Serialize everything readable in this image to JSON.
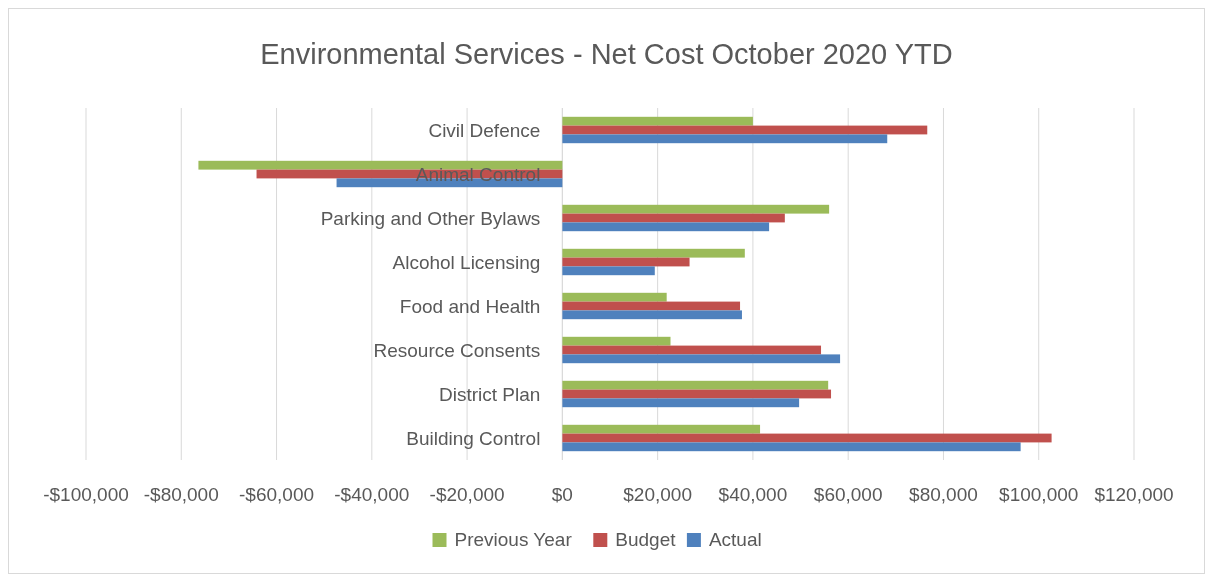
{
  "chart_data": {
    "type": "bar",
    "orientation": "horizontal",
    "title": "Environmental Services - Net Cost October 2020 YTD",
    "categories": [
      "Civil Defence",
      "Animal Control",
      "Parking and Other Bylaws",
      "Alcohol Licensing",
      "Food and Health",
      "Resource Consents",
      "District Plan",
      "Building Control"
    ],
    "series": [
      {
        "name": "Previous Year",
        "color": "#9bbb59",
        "values": [
          40000,
          -76400,
          56000,
          38300,
          21900,
          22700,
          55800,
          41500
        ]
      },
      {
        "name": "Budget",
        "color": "#c0504d",
        "values": [
          76600,
          -64200,
          46700,
          26700,
          37300,
          54300,
          56400,
          102700
        ]
      },
      {
        "name": "Actual",
        "color": "#4f81bd",
        "values": [
          68200,
          -47400,
          43400,
          19400,
          37700,
          58300,
          49700,
          96200
        ]
      }
    ],
    "xlim": [
      -100000,
      120000
    ],
    "xticks": [
      {
        "value": -100000,
        "label": "-$100,000"
      },
      {
        "value": -80000,
        "label": "-$80,000"
      },
      {
        "value": -60000,
        "label": "-$60,000"
      },
      {
        "value": -40000,
        "label": "-$40,000"
      },
      {
        "value": -20000,
        "label": "-$20,000"
      },
      {
        "value": 0,
        "label": "$0"
      },
      {
        "value": 20000,
        "label": "$20,000"
      },
      {
        "value": 40000,
        "label": "$40,000"
      },
      {
        "value": 60000,
        "label": "$60,000"
      },
      {
        "value": 80000,
        "label": "$80,000"
      },
      {
        "value": 100000,
        "label": "$100,000"
      },
      {
        "value": 120000,
        "label": "$120,000"
      }
    ],
    "grid": "x",
    "legend": "bottom"
  }
}
